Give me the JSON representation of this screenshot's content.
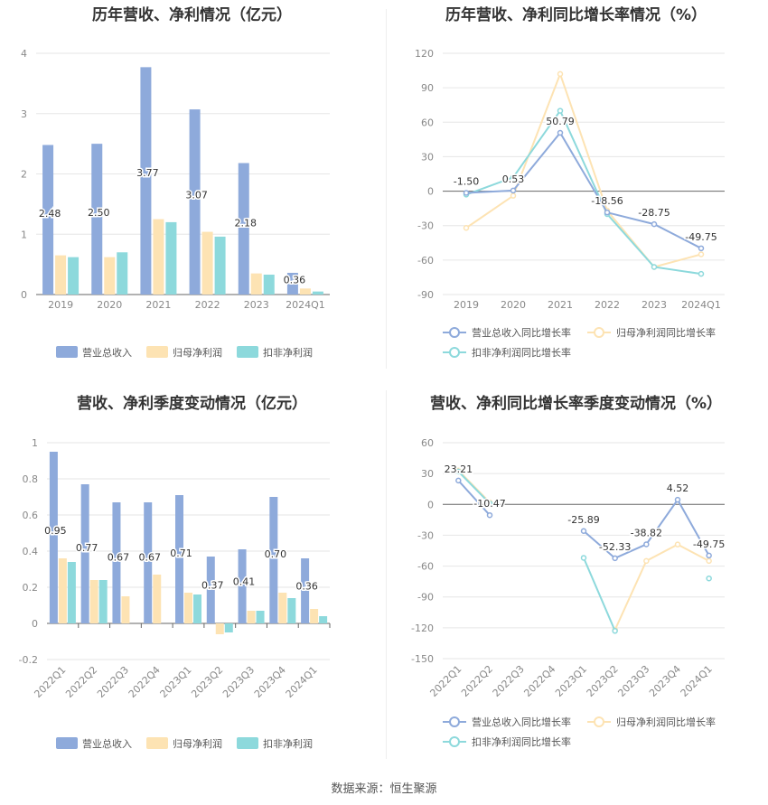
{
  "footer": {
    "source": "数据来源：恒生聚源"
  },
  "chart_data": [
    {
      "id": "annual_bar",
      "type": "bar",
      "title": "历年营收、净利情况（亿元）",
      "categories": [
        "2019",
        "2020",
        "2021",
        "2022",
        "2023",
        "2024Q1"
      ],
      "series": [
        {
          "name": "营业总收入",
          "color": "#8eaadb",
          "values": [
            2.48,
            2.5,
            3.77,
            3.07,
            2.18,
            0.36
          ],
          "labels": [
            "2.48",
            "2.50",
            "3.77",
            "3.07",
            "2.18",
            "0.36"
          ]
        },
        {
          "name": "归母净利润",
          "color": "#fde3b3",
          "values": [
            0.65,
            0.62,
            1.25,
            1.04,
            0.35,
            0.1
          ]
        },
        {
          "name": "扣非净利润",
          "color": "#8dd9dc",
          "values": [
            0.62,
            0.7,
            1.2,
            0.96,
            0.33,
            0.05
          ]
        }
      ],
      "ylim": [
        0,
        4
      ],
      "yticks": [
        "0",
        "1",
        "2",
        "3",
        "4"
      ],
      "grid": true,
      "legend": "bottom"
    },
    {
      "id": "annual_growth",
      "type": "line",
      "title": "历年营收、净利同比增长率情况（%）",
      "categories": [
        "2019",
        "2020",
        "2021",
        "2022",
        "2023",
        "2024Q1"
      ],
      "series": [
        {
          "name": "营业总收入同比增长率",
          "color": "#8eaadb",
          "values": [
            -1.5,
            0.53,
            50.79,
            -18.56,
            -28.75,
            -49.75
          ],
          "labels": [
            "-1.50",
            "0.53",
            "50.79",
            "-18.56",
            "-28.75",
            "-49.75"
          ]
        },
        {
          "name": "归母净利润同比增长率",
          "color": "#fde3b3",
          "values": [
            -32,
            -4,
            102,
            -17,
            -66,
            -55
          ]
        },
        {
          "name": "扣非净利润同比增长率",
          "color": "#8dd9dc",
          "values": [
            -3,
            12,
            70,
            -20,
            -66,
            -72
          ]
        }
      ],
      "ylim": [
        -90,
        120
      ],
      "yticks": [
        "-90",
        "-60",
        "-30",
        "0",
        "30",
        "60",
        "90",
        "120"
      ],
      "grid": true,
      "legend": "bottom"
    },
    {
      "id": "quarterly_bar",
      "type": "bar",
      "title": "营收、净利季度变动情况（亿元）",
      "categories": [
        "2022Q1",
        "2022Q2",
        "2022Q3",
        "2022Q4",
        "2023Q1",
        "2023Q2",
        "2023Q3",
        "2023Q4",
        "2024Q1"
      ],
      "series": [
        {
          "name": "营业总收入",
          "color": "#8eaadb",
          "values": [
            0.95,
            0.77,
            0.67,
            0.67,
            0.71,
            0.37,
            0.41,
            0.7,
            0.36
          ],
          "labels": [
            "0.95",
            "0.77",
            "0.67",
            "0.67",
            "0.71",
            "0.37",
            "0.41",
            "0.70",
            "0.36"
          ]
        },
        {
          "name": "归母净利润",
          "color": "#fde3b3",
          "values": [
            0.36,
            0.24,
            0.15,
            0.27,
            0.17,
            -0.06,
            0.07,
            0.17,
            0.08
          ]
        },
        {
          "name": "扣非净利润",
          "color": "#8dd9dc",
          "values": [
            0.34,
            0.24,
            null,
            null,
            0.16,
            -0.05,
            0.07,
            0.14,
            0.04
          ]
        }
      ],
      "ylim": [
        -0.2,
        1
      ],
      "yticks": [
        "-0.2",
        "0",
        "0.2",
        "0.4",
        "0.6",
        "0.8",
        "1"
      ],
      "grid": true,
      "legend": "bottom"
    },
    {
      "id": "quarterly_growth",
      "type": "line",
      "title": "营收、净利同比增长率季度变动情况（%）",
      "categories": [
        "2022Q1",
        "2022Q2",
        "2022Q3",
        "2022Q4",
        "2023Q1",
        "2023Q2",
        "2023Q3",
        "2023Q4",
        "2024Q1"
      ],
      "series": [
        {
          "name": "营业总收入同比增长率",
          "color": "#8eaadb",
          "values": [
            23.21,
            -10.47,
            null,
            null,
            -25.89,
            -52.33,
            -38.82,
            4.52,
            -49.75
          ],
          "labels": [
            "23.21",
            "-10.47",
            null,
            null,
            "-25.89",
            "-52.33",
            "-38.82",
            "4.52",
            "-49.75"
          ]
        },
        {
          "name": "归母净利润同比增长率",
          "color": "#fde3b3",
          "values": [
            33,
            2,
            null,
            null,
            null,
            -122,
            -55,
            -39,
            -55
          ]
        },
        {
          "name": "扣非净利润同比增长率",
          "color": "#8dd9dc",
          "values": [
            32,
            1,
            null,
            null,
            -52,
            -123,
            null,
            null,
            -72
          ]
        }
      ],
      "ylim": [
        -150,
        60
      ],
      "yticks": [
        "-150",
        "-120",
        "-90",
        "-60",
        "-30",
        "0",
        "30",
        "60"
      ],
      "grid": true,
      "legend": "bottom"
    }
  ]
}
